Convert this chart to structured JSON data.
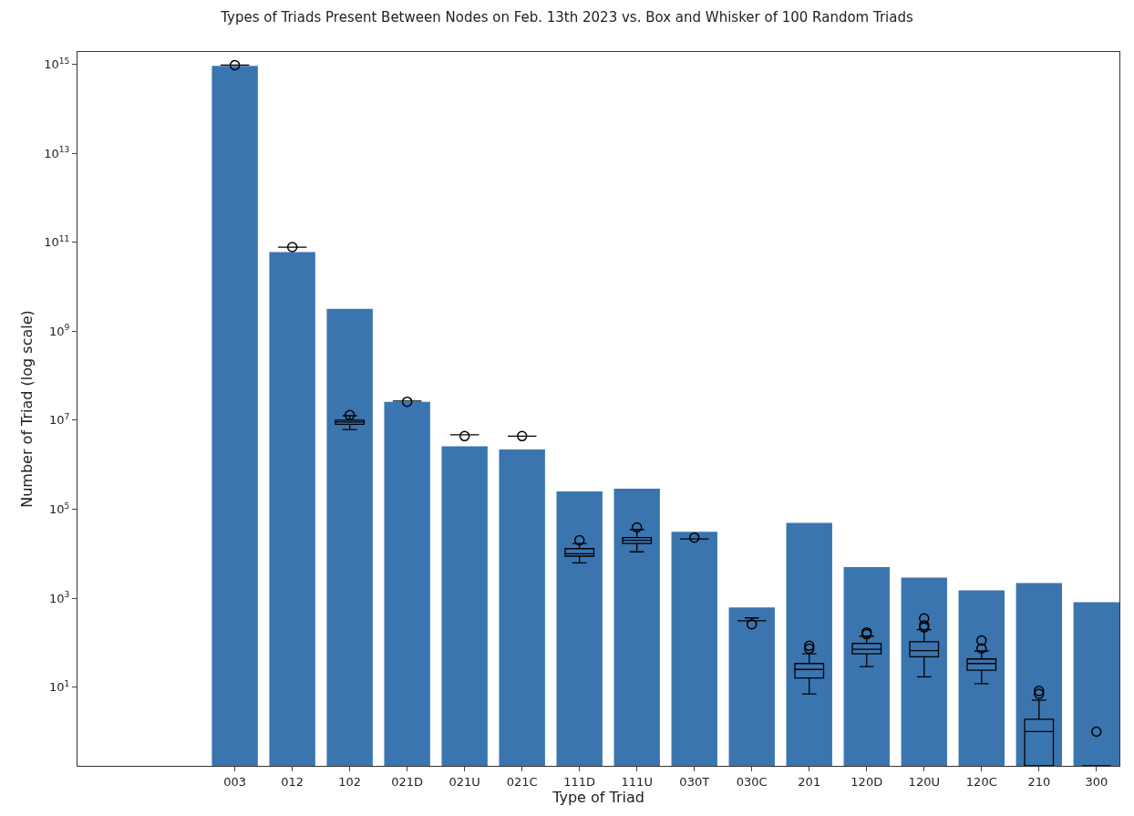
{
  "chart_data": {
    "type": "bar",
    "title": "Types of Triads Present Between Nodes on Feb. 13th 2023 vs. Box and Whisker of 100 Random Triads",
    "xlabel": "Type of Triad",
    "ylabel": "Number of Triad (log scale)",
    "categories": [
      null,
      null,
      "003",
      "012",
      "102",
      "021D",
      "021U",
      "021C",
      "111D",
      "111U",
      "030T",
      "030C",
      "201",
      "120D",
      "120U",
      "120C",
      "210",
      "300"
    ],
    "series": [
      {
        "color": "#3b75af",
        "values": [
          null,
          null,
          930000000000000.0,
          60000000000.0,
          3200000000.0,
          26000000.0,
          2600000.0,
          2200000.0,
          250000.0,
          290000.0,
          31000.0,
          620,
          49000.0,
          5000,
          2900,
          1500,
          2200,
          810
        ]
      },
      {
        "type": "box",
        "color": "#000000",
        "boxes": [
          null,
          null,
          {
            "low": 960000000000000.0,
            "q1": 960000000000000.0,
            "median": 960000000000000.0,
            "q3": 960000000000000.0,
            "high": 960000000000000.0,
            "outliers": [
              960000000000000.0
            ]
          },
          {
            "low": 78000000000.0,
            "q1": 78000000000.0,
            "median": 78000000000.0,
            "q3": 78000000000.0,
            "high": 78000000000.0,
            "outliers": [
              78000000000.0
            ]
          },
          {
            "low": 6200000.0,
            "q1": 8100000.0,
            "median": 9100000.0,
            "q3": 10000000.0,
            "high": 12600000.0,
            "outliers": [
              13000000.0
            ]
          },
          {
            "low": 27000000.0,
            "q1": 27000000.0,
            "median": 27000000.0,
            "q3": 27000000.0,
            "high": 27000000.0,
            "outliers": [
              26000000.0
            ]
          },
          {
            "low": 4700000.0,
            "q1": 4700000.0,
            "median": 4700000.0,
            "q3": 4700000.0,
            "high": 4700000.0,
            "outliers": [
              4400000.0
            ]
          },
          {
            "low": 4400000.0,
            "q1": 4400000.0,
            "median": 4400000.0,
            "q3": 4400000.0,
            "high": 4400000.0,
            "outliers": [
              4400000.0
            ]
          },
          {
            "low": 6200,
            "q1": 8800,
            "median": 10000,
            "q3": 13000,
            "high": 17000,
            "outliers": [
              20000
            ]
          },
          {
            "low": 11000,
            "q1": 17000,
            "median": 20000,
            "q3": 23000,
            "high": 35000,
            "outliers": [
              39000
            ]
          },
          {
            "low": 21500,
            "q1": 21500,
            "median": 21500,
            "q3": 21500,
            "high": 21500,
            "outliers": [
              23000
            ]
          },
          {
            "low": 310,
            "q1": 310,
            "median": 310,
            "q3": 310,
            "high": 360,
            "outliers": [
              260
            ]
          },
          {
            "low": 7,
            "q1": 16,
            "median": 25,
            "q3": 34,
            "high": 56,
            "outliers": [
              73,
              85
            ]
          },
          {
            "low": 29,
            "q1": 56,
            "median": 71,
            "q3": 96,
            "high": 140,
            "outliers": [
              155,
              170
            ]
          },
          {
            "low": 17,
            "q1": 48,
            "median": 66,
            "q3": 105,
            "high": 195,
            "outliers": [
              220,
              245,
              350
            ]
          },
          {
            "low": 12,
            "q1": 24,
            "median": 34,
            "q3": 43,
            "high": 65,
            "outliers": [
              74,
              112
            ]
          },
          {
            "low": 0.17,
            "q1": 0.17,
            "median": 1,
            "q3": 1.9,
            "high": 5.1,
            "outliers": [
              7.1,
              8.2
            ]
          },
          {
            "low": 0.17,
            "q1": 0.17,
            "median": 0.17,
            "q3": 0.17,
            "high": 0.17,
            "outliers": [
              1
            ]
          }
        ]
      }
    ],
    "log": true,
    "ylim": [
      0.17,
      1900000000000000.0
    ],
    "yticks": [
      {
        "value": 10,
        "label": "10$^{1}$"
      },
      {
        "value": 1000,
        "label": "10$^{3}$"
      },
      {
        "value": 100000.0,
        "label": "10$^{5}$"
      },
      {
        "value": 10000000.0,
        "label": "10$^{7}$"
      },
      {
        "value": 1000000000.0,
        "label": "10$^{9}$"
      },
      {
        "value": 100000000000.0,
        "label": "10$^{11}$"
      },
      {
        "value": 10000000000000.0,
        "label": "10$^{13}$"
      },
      {
        "value": 1000000000000000.0,
        "label": "10$^{15}$"
      }
    ],
    "marker": "circle"
  }
}
